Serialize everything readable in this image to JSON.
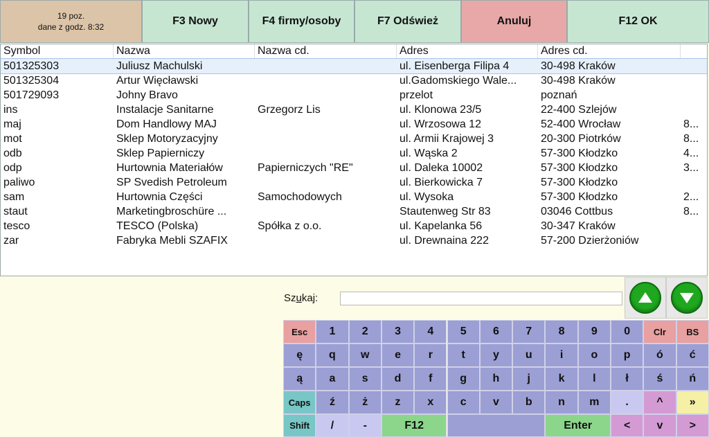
{
  "toolbar": {
    "info_line1": "19 poz.",
    "info_line2": "dane z godz.  8:32",
    "buttons": [
      {
        "label": "F3 Nowy",
        "name": "f3-new-button"
      },
      {
        "label": "F4 firmy/osoby",
        "name": "f4-companies-persons-button"
      },
      {
        "label": "F7 Odśwież",
        "name": "f7-refresh-button"
      },
      {
        "label": "Anuluj",
        "name": "cancel-button"
      },
      {
        "label": "F12 OK",
        "name": "f12-ok-button"
      }
    ]
  },
  "table": {
    "columns": [
      "Symbol",
      "Nazwa",
      "Nazwa cd.",
      "Adres",
      "Adres cd.",
      ""
    ],
    "rows": [
      [
        "501325303",
        "Juliusz Machulski",
        "",
        "ul. Eisenberga Filipa 4",
        "30-498 Kraków",
        ""
      ],
      [
        "501325304",
        "Artur Więcławski",
        "",
        "ul.Gadomskiego Wale...",
        "30-498 Kraków",
        ""
      ],
      [
        "501729093",
        "Johny Bravo",
        "",
        "przelot",
        "poznań",
        ""
      ],
      [
        "ins",
        "Instalacje Sanitarne",
        "Grzegorz Lis",
        "ul. Klonowa  23/5",
        "22-400 Szlejów",
        ""
      ],
      [
        "maj",
        "Dom Handlowy MAJ",
        "",
        "ul. Wrzosowa 12",
        "52-400 Wrocław",
        "8..."
      ],
      [
        "mot",
        "Sklep Motoryzacyjny",
        "",
        "ul. Armii Krajowej 3",
        "20-300 Piotrków",
        "8..."
      ],
      [
        "odb",
        "Sklep Papierniczy",
        "",
        "ul. Wąska 2",
        "57-300 Kłodzko",
        "4..."
      ],
      [
        "odp",
        "Hurtownia Materiałów",
        "Papierniczych \"RE\"",
        "ul. Daleka 10002",
        "57-300 Kłodzko",
        "3..."
      ],
      [
        "paliwo",
        "SP Svedish Petroleum",
        "",
        "ul. Bierkowicka 7",
        "57-300 Kłodzko",
        ""
      ],
      [
        "sam",
        "Hurtownia Części",
        "Samochodowych",
        "ul. Wysoka",
        "57-300 Kłodzko",
        "2..."
      ],
      [
        "staut",
        "Marketingbroschüre ...",
        "",
        "Stautenweg Str 83",
        "03046 Cottbus",
        "8..."
      ],
      [
        "tesco",
        "TESCO (Polska)",
        "Spółka z o.o.",
        "ul. Kapelanka 56",
        "30-347 Kraków",
        ""
      ],
      [
        "zar",
        "Fabryka Mebli SZAFIX",
        "",
        "ul. Drewnaina 222",
        "57-200 Dzierżoniów",
        ""
      ]
    ],
    "selected_row": 0
  },
  "search": {
    "label": "Szukaj:",
    "value": ""
  },
  "nav": {
    "up_icon": "arrow-up-icon",
    "down_icon": "arrow-down-icon",
    "color": "#1fa81f"
  },
  "keyboard": {
    "rows": [
      [
        "Esc",
        "1",
        "2",
        "3",
        "4",
        "5",
        "6",
        "7",
        "8",
        "9",
        "0",
        "Clr",
        "BS"
      ],
      [
        "ę",
        "q",
        "w",
        "e",
        "r",
        "t",
        "y",
        "u",
        "i",
        "o",
        "p",
        "ó",
        "ć"
      ],
      [
        "ą",
        "a",
        "s",
        "d",
        "f",
        "g",
        "h",
        "j",
        "k",
        "l",
        "ł",
        "ś",
        "ń"
      ],
      [
        "Caps",
        "ź",
        "ż",
        "z",
        "x",
        "c",
        "v",
        "b",
        "n",
        "m",
        ".",
        "^",
        "»"
      ],
      [
        "Shift",
        "/",
        "-",
        "F12",
        "",
        "Enter",
        "<",
        "v",
        ">"
      ]
    ],
    "colors": {
      "key": "#9b9fd4",
      "esc": "#e8a0a0",
      "clr": "#e8a0a0",
      "caps": "#78c6c6",
      "shift": "#78c6c6",
      "dot": "#c8c8f0",
      "caret": "#d49ad4",
      "raquo": "#f6f0a6",
      "green": "#8cd68c",
      "slash": "#c8c8f0",
      "arrows": "#d49ad4"
    }
  }
}
